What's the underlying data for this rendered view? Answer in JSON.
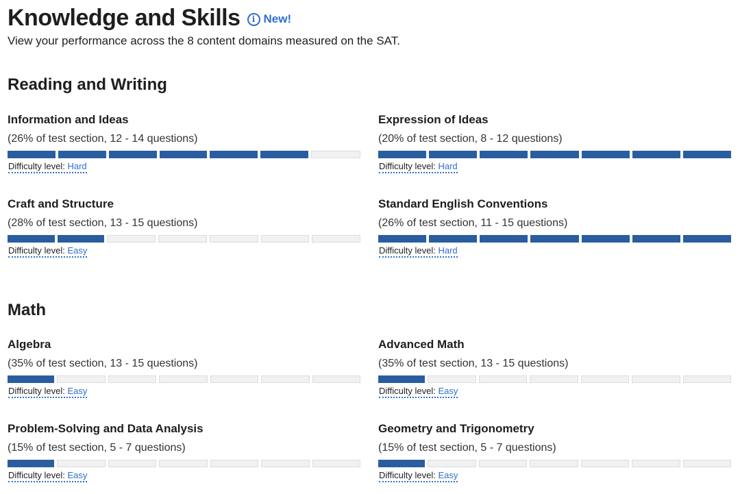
{
  "header": {
    "title": "Knowledge and Skills",
    "info_icon": "info-icon",
    "new_label": "New!",
    "subtitle": "View your performance across the 8 content domains measured on the SAT."
  },
  "colors": {
    "filled": "#2a5d9f",
    "accent": "#2e6fd1",
    "empty": "#f1f1f1"
  },
  "segments_total": 7,
  "sections": [
    {
      "title": "Reading and Writing",
      "domains": [
        {
          "name": "Information and Ideas",
          "description": "(26% of test section, 12 - 14 questions)",
          "filled": 6,
          "difficulty_label": "Difficulty level:",
          "difficulty": "Hard"
        },
        {
          "name": "Expression of Ideas",
          "description": "(20% of test section, 8 - 12 questions)",
          "filled": 7,
          "difficulty_label": "Difficulty level:",
          "difficulty": "Hard"
        },
        {
          "name": "Craft and Structure",
          "description": "(28% of test section, 13 - 15 questions)",
          "filled": 2,
          "difficulty_label": "Difficulty level:",
          "difficulty": "Easy"
        },
        {
          "name": "Standard English Conventions",
          "description": "(26% of test section, 11 - 15 questions)",
          "filled": 7,
          "difficulty_label": "Difficulty level:",
          "difficulty": "Hard"
        }
      ]
    },
    {
      "title": "Math",
      "domains": [
        {
          "name": "Algebra",
          "description": "(35% of test section, 13 - 15 questions)",
          "filled": 1,
          "difficulty_label": "Difficulty level:",
          "difficulty": "Easy"
        },
        {
          "name": "Advanced Math",
          "description": "(35% of test section, 13 - 15 questions)",
          "filled": 1,
          "difficulty_label": "Difficulty level:",
          "difficulty": "Easy"
        },
        {
          "name": "Problem-Solving and Data Analysis",
          "description": "(15% of test section, 5 - 7 questions)",
          "filled": 1,
          "difficulty_label": "Difficulty level:",
          "difficulty": "Easy"
        },
        {
          "name": "Geometry and Trigonometry",
          "description": "(15% of test section, 5 - 7 questions)",
          "filled": 1,
          "difficulty_label": "Difficulty level:",
          "difficulty": "Easy"
        }
      ]
    }
  ]
}
